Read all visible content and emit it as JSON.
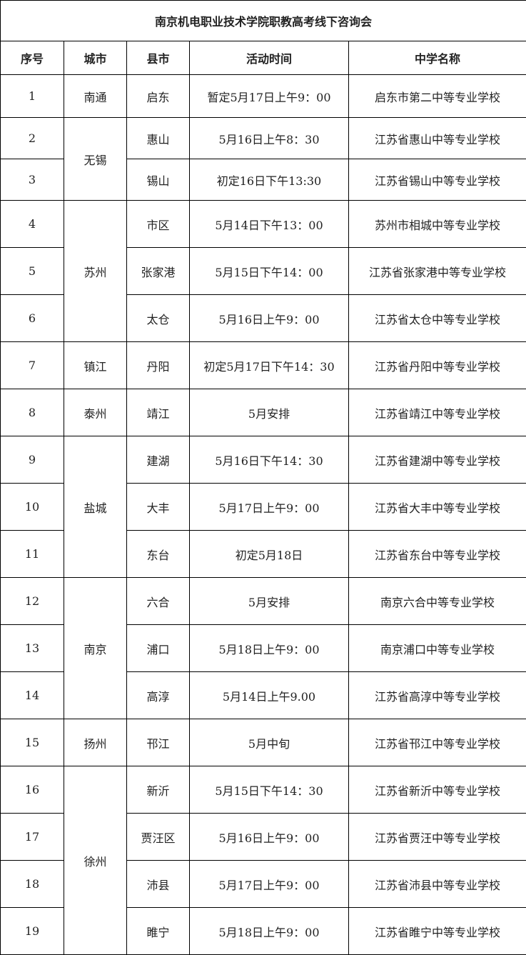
{
  "title": "南京机电职业技术学院职教高考线下咨询会",
  "headers": [
    "序号",
    "城市",
    "县市",
    "活动时间",
    "中学名称"
  ],
  "cities": [
    {
      "name": "南通",
      "rows": [
        {
          "no": "1",
          "county": "启东",
          "time": "暂定5月17日上午9：00",
          "school": "启东市第二中等专业学校"
        }
      ]
    },
    {
      "name": "无锡",
      "rows": [
        {
          "no": "2",
          "county": "惠山",
          "time": "5月16日上午8：30",
          "school": "江苏省惠山中等专业学校"
        },
        {
          "no": "3",
          "county": "锡山",
          "time": "初定16日下午13:30",
          "school": "江苏省锡山中等专业学校"
        }
      ]
    },
    {
      "name": "苏州",
      "rows": [
        {
          "no": "4",
          "county": "市区",
          "time": "5月14日下午13：00",
          "school": "苏州市相城中等专业学校"
        },
        {
          "no": "5",
          "county": "张家港",
          "time": "5月15日下午14：00",
          "school": "江苏省张家港中等专业学校"
        },
        {
          "no": "6",
          "county": "太仓",
          "time": "5月16日上午9：00",
          "school": "江苏省太仓中等专业学校"
        }
      ]
    },
    {
      "name": "镇江",
      "rows": [
        {
          "no": "7",
          "county": "丹阳",
          "time": "初定5月17日下午14：30",
          "school": "江苏省丹阳中等专业学校"
        }
      ]
    },
    {
      "name": "泰州",
      "rows": [
        {
          "no": "8",
          "county": "靖江",
          "time": "5月安排",
          "school": "江苏省靖江中等专业学校"
        }
      ]
    },
    {
      "name": "盐城",
      "rows": [
        {
          "no": "9",
          "county": "建湖",
          "time": "5月16日下午14：30",
          "school": "江苏省建湖中等专业学校"
        },
        {
          "no": "10",
          "county": "大丰",
          "time": "5月17日上午9：00",
          "school": "江苏省大丰中等专业学校"
        },
        {
          "no": "11",
          "county": "东台",
          "time": "初定5月18日",
          "school": "江苏省东台中等专业学校"
        }
      ]
    },
    {
      "name": "南京",
      "rows": [
        {
          "no": "12",
          "county": "六合",
          "time": "5月安排",
          "school": "南京六合中等专业学校"
        },
        {
          "no": "13",
          "county": "浦口",
          "time": "5月18日上午9：00",
          "school": "南京浦口中等专业学校"
        },
        {
          "no": "14",
          "county": "高淳",
          "time": "5月14日上午9.00",
          "school": "江苏省高淳中等专业学校"
        }
      ]
    },
    {
      "name": "扬州",
      "rows": [
        {
          "no": "15",
          "county": "邗江",
          "time": "5月中旬",
          "school": "江苏省邗江中等专业学校"
        }
      ]
    },
    {
      "name": "徐州",
      "rows": [
        {
          "no": "16",
          "county": "新沂",
          "time": "5月15日下午14：30",
          "school": "江苏省新沂中等专业学校"
        },
        {
          "no": "17",
          "county": "贾汪区",
          "time": "5月16日上午9：00",
          "school": "江苏省贾汪中等专业学校"
        },
        {
          "no": "18",
          "county": "沛县",
          "time": "5月17日上午9：00",
          "school": "江苏省沛县中等专业学校"
        },
        {
          "no": "19",
          "county": "睢宁",
          "time": "5月18日上午9：00",
          "school": "江苏省睢宁中等专业学校"
        }
      ]
    }
  ]
}
